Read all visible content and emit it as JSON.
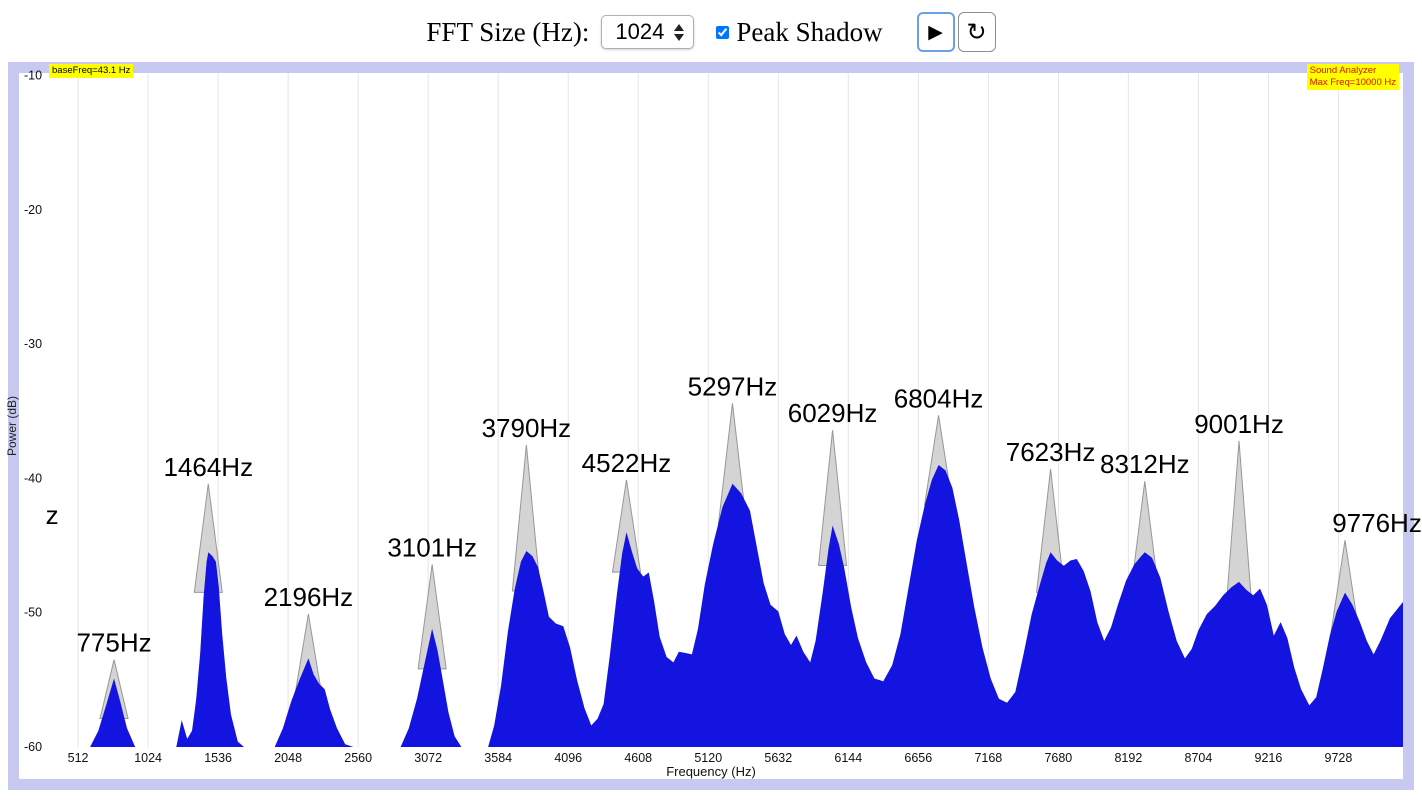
{
  "toolbar": {
    "fft_label": "FFT Size (Hz):",
    "fft_value": "1024",
    "peak_shadow_label": "Peak Shadow",
    "peak_shadow_checked": true,
    "play_icon": "▶",
    "reset_icon": "↻"
  },
  "annotations": {
    "base_freq": "baseFreq=43.1 Hz",
    "title": "Sound Analyzer",
    "max_freq": "Max Freq=10000 Hz"
  },
  "chart_data": {
    "type": "area",
    "title": "Sound Analyzer",
    "xlabel": "Frequency (Hz)",
    "ylabel": "Power (dB)",
    "xlim": [
      80,
      10200
    ],
    "ylim": [
      -60,
      -9.8
    ],
    "x_ticks": [
      512,
      1024,
      1536,
      2048,
      2560,
      3072,
      3584,
      4096,
      4608,
      5120,
      5632,
      6144,
      6656,
      7168,
      7680,
      8192,
      8704,
      9216,
      9728
    ],
    "y_ticks": [
      -10,
      -20,
      -30,
      -40,
      -50,
      -60
    ],
    "colors": {
      "area": "#1414e0",
      "shadow_fill": "#d4d4d4",
      "shadow_edge": "#979797",
      "grid": "#e5e5e5",
      "frame": "#c8c9f0",
      "label_bg": "#ffff00"
    },
    "series": [
      {
        "name": "spectrum",
        "points": [
          [
            80,
            -60
          ],
          [
            600,
            -60
          ],
          [
            660,
            -58.8
          ],
          [
            720,
            -56.8
          ],
          [
            775,
            -54.9
          ],
          [
            820,
            -56.6
          ],
          [
            870,
            -58.6
          ],
          [
            930,
            -60
          ],
          [
            1230,
            -60
          ],
          [
            1270,
            -58
          ],
          [
            1310,
            -59.4
          ],
          [
            1345,
            -58.8
          ],
          [
            1375,
            -56.5
          ],
          [
            1405,
            -53
          ],
          [
            1430,
            -48.8
          ],
          [
            1452,
            -46.2
          ],
          [
            1464,
            -45.5
          ],
          [
            1495,
            -45.8
          ],
          [
            1520,
            -46.2
          ],
          [
            1540,
            -48
          ],
          [
            1565,
            -51.5
          ],
          [
            1595,
            -54.8
          ],
          [
            1630,
            -57.6
          ],
          [
            1680,
            -59.6
          ],
          [
            1725,
            -60
          ],
          [
            1950,
            -60
          ],
          [
            2010,
            -58.6
          ],
          [
            2070,
            -56.6
          ],
          [
            2130,
            -55
          ],
          [
            2196,
            -53.4
          ],
          [
            2235,
            -54.6
          ],
          [
            2275,
            -55.3
          ],
          [
            2315,
            -55.7
          ],
          [
            2355,
            -57.2
          ],
          [
            2405,
            -58.6
          ],
          [
            2465,
            -59.8
          ],
          [
            2525,
            -60
          ],
          [
            2870,
            -60
          ],
          [
            2930,
            -58.6
          ],
          [
            2990,
            -56.4
          ],
          [
            3045,
            -53.8
          ],
          [
            3101,
            -51.2
          ],
          [
            3140,
            -52.8
          ],
          [
            3175,
            -54.8
          ],
          [
            3220,
            -57.4
          ],
          [
            3265,
            -59.2
          ],
          [
            3315,
            -60
          ],
          [
            3510,
            -60
          ],
          [
            3555,
            -58.4
          ],
          [
            3605,
            -55.4
          ],
          [
            3655,
            -51.4
          ],
          [
            3705,
            -48.2
          ],
          [
            3750,
            -46.2
          ],
          [
            3790,
            -45.4
          ],
          [
            3835,
            -45.8
          ],
          [
            3875,
            -46.6
          ],
          [
            3915,
            -48.4
          ],
          [
            3955,
            -50.3
          ],
          [
            4005,
            -50.8
          ],
          [
            4060,
            -51
          ],
          [
            4110,
            -52.6
          ],
          [
            4160,
            -55
          ],
          [
            4215,
            -57.1
          ],
          [
            4265,
            -58.4
          ],
          [
            4310,
            -57.9
          ],
          [
            4355,
            -56.8
          ],
          [
            4400,
            -53.2
          ],
          [
            4450,
            -48.8
          ],
          [
            4490,
            -45.6
          ],
          [
            4522,
            -44
          ],
          [
            4560,
            -45.4
          ],
          [
            4600,
            -46.7
          ],
          [
            4645,
            -47.3
          ],
          [
            4685,
            -47
          ],
          [
            4725,
            -49.2
          ],
          [
            4765,
            -51.8
          ],
          [
            4815,
            -53.3
          ],
          [
            4865,
            -53.7
          ],
          [
            4905,
            -52.9
          ],
          [
            4955,
            -53
          ],
          [
            5000,
            -53.1
          ],
          [
            5045,
            -51.2
          ],
          [
            5095,
            -47.9
          ],
          [
            5155,
            -44.9
          ],
          [
            5225,
            -42.1
          ],
          [
            5297,
            -40.4
          ],
          [
            5360,
            -41.1
          ],
          [
            5425,
            -42.4
          ],
          [
            5475,
            -45.1
          ],
          [
            5525,
            -47.8
          ],
          [
            5575,
            -49.4
          ],
          [
            5632,
            -49.9
          ],
          [
            5680,
            -51.6
          ],
          [
            5725,
            -52.4
          ],
          [
            5765,
            -51.7
          ],
          [
            5815,
            -52.9
          ],
          [
            5865,
            -53.7
          ],
          [
            5905,
            -52.1
          ],
          [
            5955,
            -48.6
          ],
          [
            6000,
            -45.2
          ],
          [
            6029,
            -43.5
          ],
          [
            6075,
            -44.9
          ],
          [
            6115,
            -46.7
          ],
          [
            6165,
            -49.6
          ],
          [
            6215,
            -51.9
          ],
          [
            6275,
            -53.7
          ],
          [
            6335,
            -54.9
          ],
          [
            6400,
            -55.1
          ],
          [
            6465,
            -53.9
          ],
          [
            6525,
            -51.6
          ],
          [
            6585,
            -48.1
          ],
          [
            6645,
            -44.6
          ],
          [
            6705,
            -41.9
          ],
          [
            6755,
            -40.1
          ],
          [
            6804,
            -39
          ],
          [
            6855,
            -39.4
          ],
          [
            6905,
            -40.7
          ],
          [
            6955,
            -43.1
          ],
          [
            7005,
            -46.1
          ],
          [
            7065,
            -49.6
          ],
          [
            7125,
            -52.6
          ],
          [
            7185,
            -54.9
          ],
          [
            7245,
            -56.4
          ],
          [
            7305,
            -56.7
          ],
          [
            7365,
            -55.9
          ],
          [
            7425,
            -53.1
          ],
          [
            7485,
            -50.1
          ],
          [
            7545,
            -47.9
          ],
          [
            7590,
            -46.3
          ],
          [
            7623,
            -45.5
          ],
          [
            7670,
            -46.1
          ],
          [
            7720,
            -46.5
          ],
          [
            7770,
            -46.1
          ],
          [
            7815,
            -46
          ],
          [
            7865,
            -46.9
          ],
          [
            7915,
            -48.4
          ],
          [
            7965,
            -50.7
          ],
          [
            8015,
            -52.1
          ],
          [
            8065,
            -51.1
          ],
          [
            8115,
            -49.4
          ],
          [
            8175,
            -47.6
          ],
          [
            8235,
            -46.4
          ],
          [
            8285,
            -45.8
          ],
          [
            8312,
            -45.5
          ],
          [
            8365,
            -45.9
          ],
          [
            8425,
            -47.4
          ],
          [
            8485,
            -49.9
          ],
          [
            8545,
            -52.1
          ],
          [
            8605,
            -53.4
          ],
          [
            8655,
            -52.7
          ],
          [
            8704,
            -51.3
          ],
          [
            8765,
            -50.1
          ],
          [
            8825,
            -49.5
          ],
          [
            8885,
            -48.7
          ],
          [
            8945,
            -48.1
          ],
          [
            9001,
            -47.7
          ],
          [
            9055,
            -48.3
          ],
          [
            9105,
            -48.7
          ],
          [
            9155,
            -48.2
          ],
          [
            9205,
            -49.4
          ],
          [
            9255,
            -51.7
          ],
          [
            9305,
            -50.7
          ],
          [
            9355,
            -51.9
          ],
          [
            9405,
            -54.1
          ],
          [
            9455,
            -55.7
          ],
          [
            9515,
            -56.9
          ],
          [
            9565,
            -56.3
          ],
          [
            9615,
            -54.1
          ],
          [
            9665,
            -51.7
          ],
          [
            9715,
            -49.9
          ],
          [
            9776,
            -48.5
          ],
          [
            9830,
            -49.4
          ],
          [
            9885,
            -50.7
          ],
          [
            9935,
            -52.1
          ],
          [
            9985,
            -53.1
          ],
          [
            10035,
            -52.1
          ],
          [
            10105,
            -50.4
          ],
          [
            10200,
            -49.2
          ]
        ]
      }
    ],
    "peaks": [
      {
        "freq": 775,
        "label": "775Hz",
        "shadow_db": -53.5
      },
      {
        "freq": 1464,
        "label": "1464Hz",
        "shadow_db": -40.4
      },
      {
        "freq": 2196,
        "label": "2196Hz",
        "shadow_db": -50.1
      },
      {
        "freq": 3101,
        "label": "3101Hz",
        "shadow_db": -46.4
      },
      {
        "freq": 3790,
        "label": "3790Hz",
        "shadow_db": -37.5
      },
      {
        "freq": 4522,
        "label": "4522Hz",
        "shadow_db": -40.1
      },
      {
        "freq": 5297,
        "label": "5297Hz",
        "shadow_db": -34.4
      },
      {
        "freq": 6029,
        "label": "6029Hz",
        "shadow_db": -36.4
      },
      {
        "freq": 6804,
        "label": "6804Hz",
        "shadow_db": -35.3
      },
      {
        "freq": 7623,
        "label": "7623Hz",
        "shadow_db": -39.3
      },
      {
        "freq": 8312,
        "label": "8312Hz",
        "shadow_db": -40.2
      },
      {
        "freq": 9001,
        "label": "9001Hz",
        "shadow_db": -37.2
      },
      {
        "freq": 9776,
        "label": "9776Hz",
        "shadow_db": -44.6,
        "label_freq": 10010
      }
    ],
    "clipped_label": {
      "text": "z",
      "freq": 322,
      "db": -43.4
    }
  }
}
